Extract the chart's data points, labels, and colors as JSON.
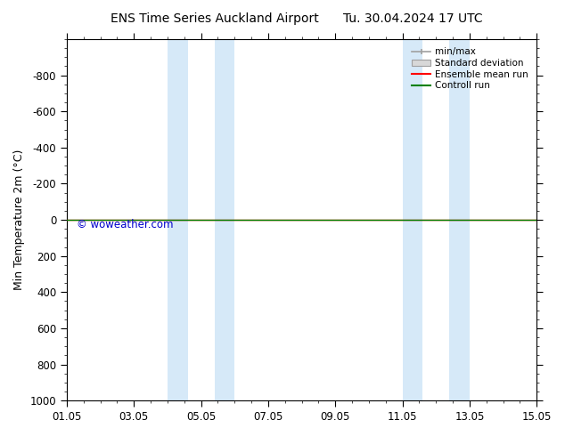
{
  "title": "ENS Time Series Auckland Airport",
  "title2": "Tu. 30.04.2024 17 UTC",
  "ylabel": "Min Temperature 2m (°C)",
  "ylim_bottom": -1000,
  "ylim_top": 1000,
  "yticks": [
    -800,
    -600,
    -400,
    -200,
    0,
    200,
    400,
    600,
    800,
    1000
  ],
  "xtick_labels": [
    "01.05",
    "03.05",
    "05.05",
    "07.05",
    "09.05",
    "11.05",
    "13.05",
    "15.05"
  ],
  "xtick_positions": [
    0,
    2,
    4,
    6,
    8,
    10,
    12,
    14
  ],
  "xlim": [
    0,
    14
  ],
  "shaded_regions": [
    [
      3.0,
      3.6
    ],
    [
      4.4,
      5.0
    ],
    [
      10.0,
      10.6
    ],
    [
      11.4,
      12.0
    ]
  ],
  "shaded_color": "#d6e9f8",
  "control_run_color": "#008000",
  "ensemble_mean_color": "#ff0000",
  "watermark": "© woweather.com",
  "watermark_color": "#0000cc",
  "legend_items": [
    "min/max",
    "Standard deviation",
    "Ensemble mean run",
    "Controll run"
  ],
  "minmax_color": "#a0a0a0",
  "stddev_color": "#c8c8c8",
  "background_color": "#ffffff"
}
